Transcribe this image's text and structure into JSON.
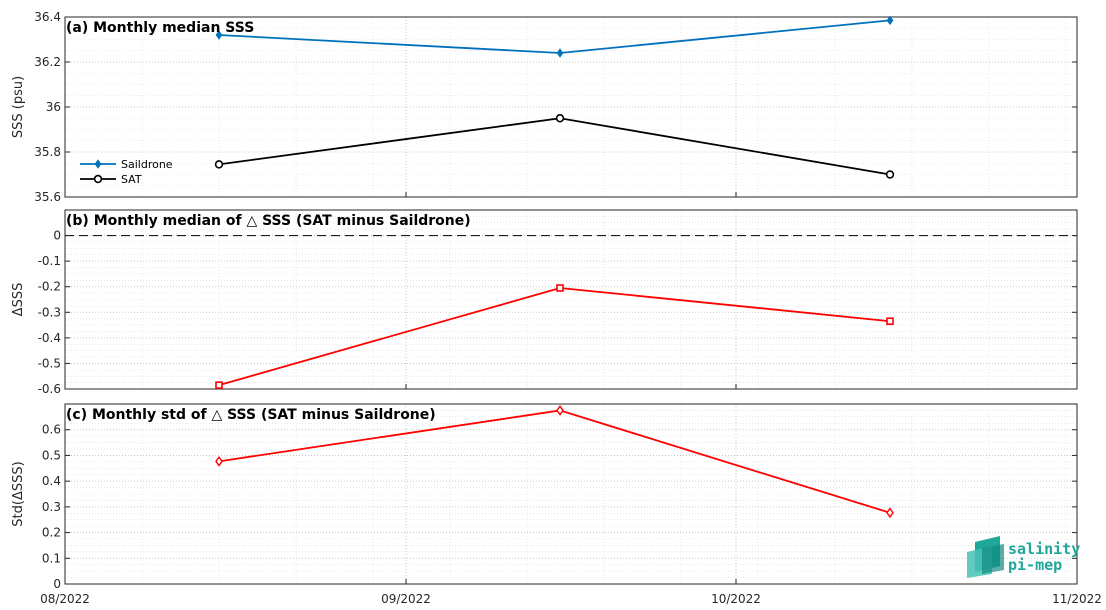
{
  "chart_data": [
    {
      "type": "line",
      "title": "(a) Monthly median SSS",
      "xlabel": "",
      "ylabel": "SSS (psu)",
      "xlim": [
        "2022-08-01",
        "2022-11-01"
      ],
      "ylim": [
        35.6,
        36.4
      ],
      "yticks": [
        35.6,
        35.8,
        36,
        36.2,
        36.4
      ],
      "ytick_labels": [
        "35.6",
        "35.8",
        "36",
        "36.2",
        "36.4"
      ],
      "grid": true,
      "legend_position": "lower-left",
      "x": [
        "2022-08-15",
        "2022-09-15",
        "2022-10-15"
      ],
      "series": [
        {
          "name": "Saildrone",
          "values": [
            36.32,
            36.24,
            36.385
          ],
          "color": "#0072bd",
          "marker": "diamond-filled"
        },
        {
          "name": "SAT",
          "values": [
            35.745,
            35.95,
            35.7
          ],
          "color": "#000000",
          "marker": "circle-open"
        }
      ]
    },
    {
      "type": "line",
      "title": "(b) Monthly median of △ SSS (SAT minus Saildrone)",
      "xlabel": "",
      "ylabel": "ΔSSS",
      "xlim": [
        "2022-08-01",
        "2022-11-01"
      ],
      "ylim": [
        -0.6,
        0.1
      ],
      "yticks": [
        -0.6,
        -0.5,
        -0.4,
        -0.3,
        -0.2,
        -0.1,
        0
      ],
      "ytick_labels": [
        "-0.6",
        "-0.5",
        "-0.4",
        "-0.3",
        "-0.2",
        "-0.1",
        "0"
      ],
      "grid": true,
      "reference_line": 0,
      "x": [
        "2022-08-15",
        "2022-09-15",
        "2022-10-15"
      ],
      "series": [
        {
          "values": [
            -0.585,
            -0.205,
            -0.335
          ],
          "color": "#ff0000",
          "marker": "square-open"
        }
      ]
    },
    {
      "type": "line",
      "title": "(c) Monthly std of △ SSS (SAT minus Saildrone)",
      "xlabel": "",
      "ylabel": "Std(ΔSSS)",
      "xlim": [
        "2022-08-01",
        "2022-11-01"
      ],
      "ylim": [
        0,
        0.7
      ],
      "yticks": [
        0,
        0.1,
        0.2,
        0.3,
        0.4,
        0.5,
        0.6
      ],
      "ytick_labels": [
        "0",
        "0.1",
        "0.2",
        "0.3",
        "0.4",
        "0.5",
        "0.6"
      ],
      "xticks": [
        "2022-08-01",
        "2022-09-01",
        "2022-10-01",
        "2022-11-01"
      ],
      "xtick_labels": [
        "08/2022",
        "09/2022",
        "10/2022",
        "11/2022"
      ],
      "grid": true,
      "x": [
        "2022-08-15",
        "2022-09-15",
        "2022-10-15"
      ],
      "series": [
        {
          "values": [
            0.477,
            0.675,
            0.277
          ],
          "color": "#ff0000",
          "marker": "diamond-open"
        }
      ]
    }
  ],
  "logo": {
    "line1": "salinity",
    "line2": "pi-mep",
    "color": "#1fa79a"
  }
}
